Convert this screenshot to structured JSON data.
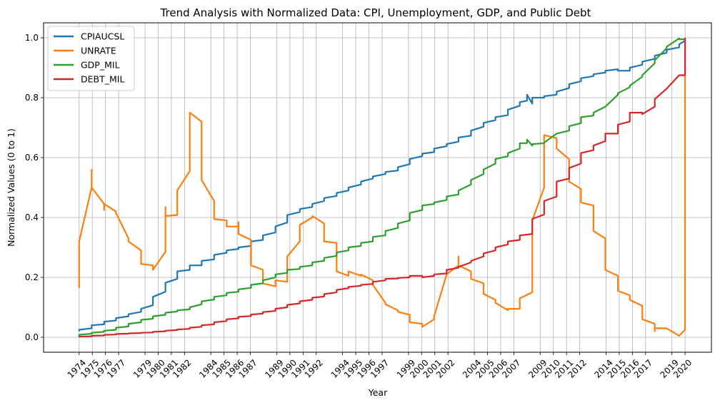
{
  "chart_data": {
    "type": "line",
    "title": "Trend Analysis with Normalized Data: CPI, Unemployment, GDP, and Public Debt",
    "xlabel": "Year",
    "ylabel": "Normalized Values (0 to 1)",
    "xlim": [
      1971.3,
      2022.0
    ],
    "ylim": [
      -0.05,
      1.05
    ],
    "yticks": [
      0.0,
      0.2,
      0.4,
      0.6,
      0.8,
      1.0
    ],
    "ytick_labels": [
      "0.0",
      "0.2",
      "0.4",
      "0.6",
      "0.8",
      "1.0"
    ],
    "xticks": [
      1974,
      1975,
      1976,
      1977,
      1979,
      1980,
      1981,
      1982,
      1984,
      1985,
      1986,
      1987,
      1989,
      1990,
      1991,
      1992,
      1994,
      1995,
      1996,
      1997,
      1999,
      2000,
      2001,
      2002,
      2004,
      2005,
      2006,
      2007,
      2009,
      2010,
      2011,
      2012,
      2014,
      2015,
      2016,
      2017,
      2019,
      2020
    ],
    "xtick_labels": [
      "1974",
      "1975",
      "1976",
      "1977",
      "1979",
      "1980",
      "1981",
      "1982",
      "1984",
      "1985",
      "1986",
      "1987",
      "1989",
      "1990",
      "1991",
      "1992",
      "1994",
      "1995",
      "1996",
      "1997",
      "1999",
      "2000",
      "2001",
      "2002",
      "2004",
      "2005",
      "2006",
      "2007",
      "2009",
      "2010",
      "2011",
      "2012",
      "2014",
      "2015",
      "2016",
      "2017",
      "2019",
      "2020"
    ],
    "grid": true,
    "legend_position": "top-left",
    "series": [
      {
        "name": "CPIAUCSL",
        "color": "#1f77b4",
        "x": [
          1974.0,
          1974.0,
          1974.95,
          1974.95,
          1975.9,
          1975.9,
          1976.8,
          1976.8,
          1977.75,
          1977.75,
          1978.7,
          1978.7,
          1979.6,
          1979.6,
          1980.55,
          1980.55,
          1981.45,
          1981.45,
          1982.4,
          1982.4,
          1983.3,
          1983.3,
          1984.25,
          1984.25,
          1985.2,
          1985.2,
          1986.1,
          1986.1,
          1987.05,
          1987.05,
          1987.95,
          1987.95,
          1988.9,
          1988.9,
          1989.8,
          1989.8,
          1990.75,
          1990.75,
          1991.7,
          1991.7,
          1992.6,
          1992.6,
          1993.55,
          1993.55,
          1994.45,
          1994.45,
          1995.4,
          1995.4,
          1996.3,
          1996.3,
          1997.25,
          1997.25,
          1998.2,
          1998.2,
          1999.1,
          1999.1,
          2000.05,
          2000.05,
          2000.95,
          2000.95,
          2001.9,
          2001.9,
          2002.8,
          2002.8,
          2003.75,
          2003.75,
          2004.7,
          2004.7,
          2005.6,
          2005.6,
          2006.55,
          2006.55,
          2007.45,
          2007.45,
          2008.0,
          2008.0,
          2008.4,
          2008.4,
          2009.3,
          2009.3,
          2010.25,
          2010.25,
          2011.2,
          2011.2,
          2012.1,
          2012.1,
          2013.05,
          2013.05,
          2013.95,
          2013.95,
          2014.9,
          2014.9,
          2015.8,
          2015.8,
          2016.75,
          2016.75,
          2017.7,
          2017.7,
          2018.6,
          2018.6,
          2019.55,
          2019.55,
          2020.0
        ],
        "values": [
          0.02,
          0.025,
          0.03,
          0.04,
          0.043,
          0.052,
          0.056,
          0.064,
          0.07,
          0.077,
          0.085,
          0.095,
          0.107,
          0.135,
          0.152,
          0.182,
          0.195,
          0.22,
          0.225,
          0.24,
          0.24,
          0.255,
          0.26,
          0.275,
          0.282,
          0.29,
          0.295,
          0.3,
          0.305,
          0.32,
          0.325,
          0.34,
          0.35,
          0.37,
          0.383,
          0.408,
          0.418,
          0.428,
          0.435,
          0.445,
          0.455,
          0.465,
          0.472,
          0.482,
          0.49,
          0.5,
          0.51,
          0.52,
          0.53,
          0.537,
          0.545,
          0.552,
          0.557,
          0.568,
          0.578,
          0.595,
          0.605,
          0.613,
          0.618,
          0.63,
          0.638,
          0.645,
          0.653,
          0.667,
          0.673,
          0.69,
          0.703,
          0.716,
          0.725,
          0.735,
          0.742,
          0.76,
          0.773,
          0.785,
          0.79,
          0.81,
          0.78,
          0.8,
          0.8,
          0.805,
          0.81,
          0.82,
          0.832,
          0.845,
          0.855,
          0.865,
          0.872,
          0.878,
          0.884,
          0.89,
          0.895,
          0.89,
          0.89,
          0.9,
          0.91,
          0.92,
          0.93,
          0.94,
          0.95,
          0.96,
          0.968,
          0.978,
          0.99
        ]
      },
      {
        "name": "UNRATE",
        "color": "#ff7f0e",
        "x": [
          1974.0,
          1974.0,
          1974.0,
          1974.95,
          1974.95,
          1974.95,
          1975.9,
          1975.9,
          1975.9,
          1976.8,
          1976.8,
          1977.75,
          1977.75,
          1978.7,
          1978.7,
          1979.6,
          1979.6,
          1980.55,
          1980.55,
          1980.55,
          1981.45,
          1981.45,
          1981.45,
          1982.4,
          1982.4,
          1983.3,
          1983.3,
          1984.25,
          1984.25,
          1985.2,
          1985.2,
          1986.1,
          1986.1,
          1986.1,
          1987.05,
          1987.05,
          1987.95,
          1987.95,
          1988.9,
          1988.9,
          1989.8,
          1989.8,
          1990.75,
          1990.75,
          1991.7,
          1991.7,
          1992.6,
          1992.6,
          1993.55,
          1993.55,
          1994.45,
          1994.45,
          1994.45,
          1995.4,
          1995.4,
          1996.3,
          1996.3,
          1997.25,
          1997.25,
          1998.2,
          1998.2,
          1999.1,
          1999.1,
          2000.05,
          2000.05,
          2000.95,
          2000.95,
          2001.9,
          2001.9,
          2002.8,
          2002.8,
          2002.8,
          2003.75,
          2003.75,
          2004.7,
          2004.7,
          2005.6,
          2005.6,
          2006.55,
          2006.55,
          2007.45,
          2007.45,
          2008.4,
          2008.4,
          2009.3,
          2009.3,
          2010.25,
          2010.25,
          2011.2,
          2011.2,
          2012.1,
          2012.1,
          2013.05,
          2013.05,
          2013.95,
          2013.95,
          2014.9,
          2014.9,
          2015.8,
          2015.8,
          2016.75,
          2016.75,
          2017.7,
          2017.7,
          2017.7,
          2018.6,
          2018.6,
          2019.55,
          2019.55,
          2020.0,
          2020.0
        ],
        "values": [
          0.165,
          0.32,
          0.32,
          0.5,
          0.56,
          0.5,
          0.445,
          0.425,
          0.445,
          0.42,
          0.415,
          0.33,
          0.32,
          0.29,
          0.245,
          0.24,
          0.225,
          0.285,
          0.435,
          0.405,
          0.408,
          0.41,
          0.49,
          0.555,
          0.75,
          0.72,
          0.525,
          0.455,
          0.395,
          0.39,
          0.37,
          0.37,
          0.385,
          0.345,
          0.325,
          0.24,
          0.225,
          0.18,
          0.17,
          0.19,
          0.185,
          0.27,
          0.32,
          0.375,
          0.4,
          0.405,
          0.38,
          0.32,
          0.315,
          0.22,
          0.205,
          0.205,
          0.22,
          0.205,
          0.21,
          0.19,
          0.175,
          0.115,
          0.11,
          0.09,
          0.085,
          0.075,
          0.05,
          0.045,
          0.035,
          0.06,
          0.07,
          0.21,
          0.21,
          0.24,
          0.27,
          0.24,
          0.22,
          0.195,
          0.18,
          0.145,
          0.125,
          0.115,
          0.09,
          0.095,
          0.095,
          0.13,
          0.15,
          0.39,
          0.5,
          0.675,
          0.665,
          0.63,
          0.595,
          0.52,
          0.495,
          0.45,
          0.44,
          0.355,
          0.33,
          0.225,
          0.205,
          0.155,
          0.14,
          0.125,
          0.105,
          0.06,
          0.045,
          0.02,
          0.03,
          0.03,
          0.03,
          0.005,
          0.005,
          0.025,
          1.0
        ]
      },
      {
        "name": "GDP_MIL",
        "color": "#2ca02c",
        "x": [
          1974.0,
          1974.0,
          1974.95,
          1974.95,
          1975.9,
          1975.9,
          1976.8,
          1976.8,
          1977.75,
          1977.75,
          1978.7,
          1978.7,
          1979.6,
          1979.6,
          1980.55,
          1980.55,
          1981.45,
          1981.45,
          1982.4,
          1982.4,
          1983.3,
          1983.3,
          1984.25,
          1984.25,
          1985.2,
          1985.2,
          1986.1,
          1986.1,
          1987.05,
          1987.05,
          1987.95,
          1987.95,
          1988.9,
          1988.9,
          1989.8,
          1989.8,
          1990.75,
          1990.75,
          1991.7,
          1991.7,
          1992.6,
          1992.6,
          1993.55,
          1993.55,
          1994.45,
          1994.45,
          1995.4,
          1995.4,
          1996.3,
          1996.3,
          1997.25,
          1997.25,
          1998.2,
          1998.2,
          1999.1,
          1999.1,
          2000.05,
          2000.05,
          2000.95,
          2000.95,
          2001.9,
          2001.9,
          2002.8,
          2002.8,
          2003.75,
          2003.75,
          2004.7,
          2004.7,
          2005.6,
          2005.6,
          2006.55,
          2006.55,
          2007.45,
          2007.45,
          2008.0,
          2008.0,
          2008.4,
          2008.4,
          2009.3,
          2009.3,
          2010.25,
          2010.25,
          2011.2,
          2011.2,
          2012.1,
          2012.1,
          2013.05,
          2013.05,
          2013.95,
          2013.95,
          2014.9,
          2014.9,
          2015.8,
          2015.8,
          2016.75,
          2016.75,
          2017.7,
          2017.7,
          2018.6,
          2018.6,
          2019.55,
          2019.55,
          2020.0
        ],
        "values": [
          0.003,
          0.008,
          0.012,
          0.015,
          0.018,
          0.022,
          0.025,
          0.032,
          0.036,
          0.045,
          0.05,
          0.058,
          0.062,
          0.07,
          0.075,
          0.082,
          0.086,
          0.09,
          0.093,
          0.1,
          0.11,
          0.12,
          0.126,
          0.135,
          0.14,
          0.148,
          0.152,
          0.16,
          0.165,
          0.175,
          0.18,
          0.19,
          0.2,
          0.21,
          0.215,
          0.225,
          0.228,
          0.235,
          0.24,
          0.25,
          0.255,
          0.265,
          0.272,
          0.283,
          0.29,
          0.3,
          0.305,
          0.315,
          0.32,
          0.335,
          0.34,
          0.355,
          0.365,
          0.38,
          0.39,
          0.415,
          0.425,
          0.44,
          0.445,
          0.45,
          0.458,
          0.47,
          0.477,
          0.49,
          0.51,
          0.525,
          0.545,
          0.56,
          0.58,
          0.595,
          0.605,
          0.615,
          0.63,
          0.648,
          0.648,
          0.66,
          0.64,
          0.645,
          0.648,
          0.65,
          0.68,
          0.68,
          0.69,
          0.705,
          0.715,
          0.735,
          0.74,
          0.75,
          0.77,
          0.77,
          0.81,
          0.815,
          0.835,
          0.84,
          0.87,
          0.875,
          0.915,
          0.925,
          0.965,
          0.97,
          0.998,
          0.995,
          0.995
        ]
      },
      {
        "name": "DEBT_MIL",
        "color": "#d62728",
        "x": [
          1974.0,
          1974.0,
          1974.95,
          1974.95,
          1975.9,
          1975.9,
          1976.8,
          1976.8,
          1977.75,
          1977.75,
          1978.7,
          1978.7,
          1979.6,
          1979.6,
          1980.55,
          1980.55,
          1981.45,
          1981.45,
          1982.4,
          1982.4,
          1983.3,
          1983.3,
          1984.25,
          1984.25,
          1985.2,
          1985.2,
          1986.1,
          1986.1,
          1987.05,
          1987.05,
          1987.95,
          1987.95,
          1988.9,
          1988.9,
          1989.8,
          1989.8,
          1990.75,
          1990.75,
          1991.7,
          1991.7,
          1992.6,
          1992.6,
          1993.55,
          1993.55,
          1994.45,
          1994.45,
          1995.4,
          1995.4,
          1996.3,
          1996.3,
          1997.25,
          1997.25,
          1998.2,
          1998.2,
          1999.1,
          1999.1,
          2000.05,
          2000.05,
          2000.95,
          2000.95,
          2001.9,
          2001.9,
          2002.8,
          2002.8,
          2003.75,
          2003.75,
          2004.7,
          2004.7,
          2005.6,
          2005.6,
          2006.55,
          2006.55,
          2007.45,
          2007.45,
          2008.4,
          2008.4,
          2009.3,
          2009.3,
          2010.25,
          2010.25,
          2011.2,
          2011.2,
          2012.1,
          2012.1,
          2013.05,
          2013.05,
          2013.95,
          2013.95,
          2014.9,
          2014.9,
          2015.8,
          2015.8,
          2016.75,
          2016.75,
          2017.7,
          2017.7,
          2018.6,
          2018.6,
          2019.55,
          2019.55,
          2020.0,
          2020.0
        ],
        "values": [
          0.0,
          0.002,
          0.003,
          0.005,
          0.006,
          0.008,
          0.009,
          0.011,
          0.012,
          0.013,
          0.014,
          0.015,
          0.016,
          0.018,
          0.02,
          0.022,
          0.024,
          0.026,
          0.028,
          0.032,
          0.035,
          0.04,
          0.043,
          0.05,
          0.054,
          0.06,
          0.063,
          0.068,
          0.071,
          0.076,
          0.079,
          0.084,
          0.088,
          0.095,
          0.1,
          0.108,
          0.113,
          0.12,
          0.125,
          0.132,
          0.136,
          0.144,
          0.15,
          0.158,
          0.164,
          0.168,
          0.172,
          0.175,
          0.178,
          0.185,
          0.19,
          0.195,
          0.196,
          0.198,
          0.2,
          0.205,
          0.205,
          0.2,
          0.205,
          0.21,
          0.213,
          0.225,
          0.232,
          0.235,
          0.25,
          0.255,
          0.27,
          0.28,
          0.29,
          0.3,
          0.31,
          0.32,
          0.325,
          0.34,
          0.345,
          0.395,
          0.41,
          0.455,
          0.47,
          0.52,
          0.53,
          0.565,
          0.58,
          0.615,
          0.625,
          0.64,
          0.655,
          0.68,
          0.68,
          0.71,
          0.72,
          0.75,
          0.75,
          0.745,
          0.77,
          0.795,
          0.83,
          0.83,
          0.875,
          0.875,
          0.875,
          1.0
        ]
      }
    ]
  }
}
